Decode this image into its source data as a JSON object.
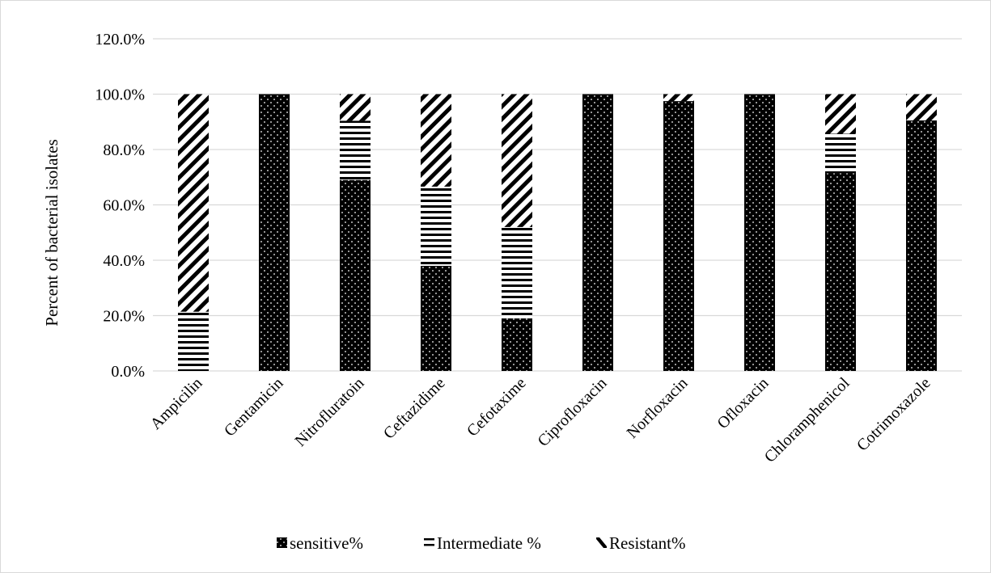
{
  "chart_data": {
    "type": "bar",
    "stacked": true,
    "ylabel": "Percent of bacterial isolates",
    "xlabel": "",
    "ylim": [
      0,
      120
    ],
    "y_ticks": [
      "0.0%",
      "20.0%",
      "40.0%",
      "60.0%",
      "80.0%",
      "100.0%",
      "120.0%"
    ],
    "y_tick_values": [
      0,
      20,
      40,
      60,
      80,
      100,
      120
    ],
    "grid": true,
    "legend_position": "bottom",
    "categories": [
      "Ampicilin",
      "Gentamicin",
      "Nitrofluratoin",
      "Ceftazidime",
      "Cefotaxime",
      "Ciprofloxacin",
      "Norfloxacin",
      "Ofloxacin",
      "Chloramphenicol",
      "Cotrimoxazole"
    ],
    "series": [
      {
        "name": "sensitive%",
        "pattern": "dots",
        "values": [
          0,
          100,
          69,
          38,
          19,
          100,
          97.5,
          100,
          71.4,
          90.5
        ]
      },
      {
        "name": "Intermediate %",
        "pattern": "horizontal-lines",
        "values": [
          21.4,
          0,
          21.4,
          28.6,
          33,
          0,
          0,
          0,
          14.3,
          0
        ]
      },
      {
        "name": "Resistant%",
        "pattern": "diagonal-stripes",
        "values": [
          78.6,
          0,
          9.6,
          33.4,
          48,
          0,
          2.5,
          0,
          14.3,
          9.5
        ]
      }
    ],
    "colors": {
      "bar": "#000000",
      "grid": "#d9d9d9",
      "border": "#d9d9d9"
    }
  }
}
